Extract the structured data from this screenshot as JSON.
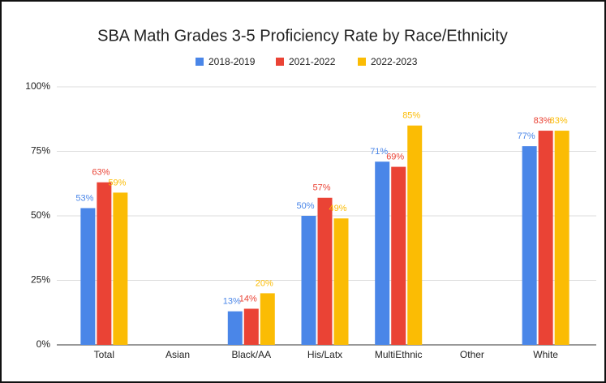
{
  "chart_data": {
    "type": "bar",
    "title": "SBA Math Grades 3-5 Proficiency Rate by Race/Ethnicity",
    "categories": [
      "Total",
      "Asian",
      "Black/AA",
      "His/Latx",
      "MultiEthnic",
      "Other",
      "White"
    ],
    "series": [
      {
        "name": "2018-2019",
        "color": "#4a86e8",
        "values": [
          53,
          null,
          13,
          50,
          71,
          null,
          77
        ],
        "value_labels": [
          "53%",
          null,
          "13%",
          "50%",
          "71%",
          null,
          "77%"
        ]
      },
      {
        "name": "2021-2022",
        "color": "#ea4335",
        "values": [
          63,
          null,
          14,
          57,
          69,
          null,
          83
        ],
        "value_labels": [
          "63%",
          null,
          "14%",
          "57%",
          "69%",
          null,
          "83%"
        ]
      },
      {
        "name": "2022-2023",
        "color": "#fbbc04",
        "values": [
          59,
          null,
          20,
          49,
          85,
          null,
          83
        ],
        "value_labels": [
          "59%",
          null,
          "20%",
          "49%",
          "85%",
          null,
          "83%"
        ]
      }
    ],
    "ylim": [
      0,
      100
    ],
    "yticks": [
      {
        "value": 0,
        "label": "0%"
      },
      {
        "value": 25,
        "label": "25%"
      },
      {
        "value": 50,
        "label": "50%"
      },
      {
        "value": 75,
        "label": "75%"
      },
      {
        "value": 100,
        "label": "100%"
      }
    ],
    "grid": true,
    "legend": "top"
  }
}
